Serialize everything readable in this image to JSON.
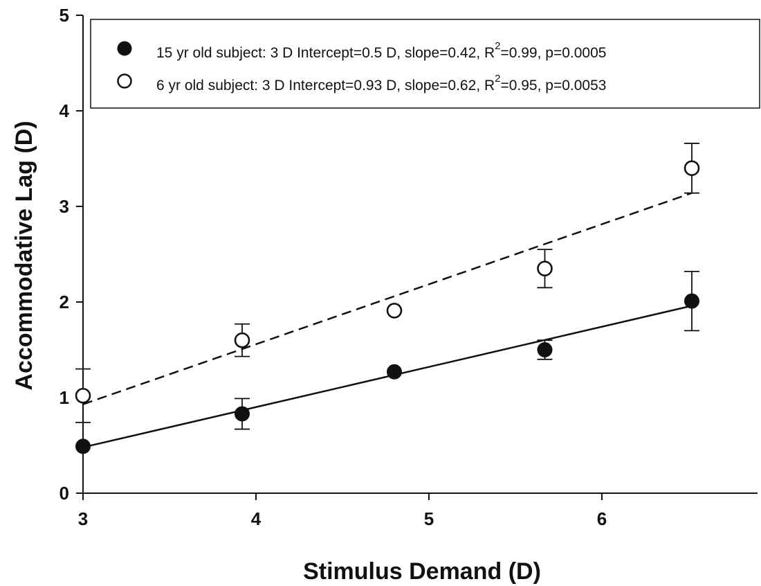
{
  "chart_data": {
    "type": "scatter",
    "xlabel": "Stimulus Demand (D)",
    "ylabel": "Accommodative Lag (D)",
    "xlim": [
      3,
      6.9
    ],
    "ylim": [
      0,
      5
    ],
    "xticks": [
      "3",
      "4",
      "5",
      "6"
    ],
    "yticks": [
      "0",
      "1",
      "2",
      "3",
      "4",
      "5"
    ],
    "grid": false,
    "legend_position": "top",
    "series": [
      {
        "name": "15 yr old subject: 3 D Intercept=0.5 D, slope=0.42, R2=0.99, p=0.0005",
        "legend_main": "15 yr old subject: 3 D Intercept=0.5 D, slope=0.42, R",
        "legend_sup": "2",
        "legend_tail": "=0.99, p=0.0005",
        "marker": "filled-circle",
        "line_style": "solid",
        "x": [
          3.0,
          3.92,
          4.8,
          5.67,
          6.52
        ],
        "y": [
          0.49,
          0.83,
          1.27,
          1.5,
          2.01
        ],
        "err_low": [
          0.0,
          0.16,
          0.0,
          0.1,
          0.31
        ],
        "err_high": [
          0.0,
          0.16,
          0.0,
          0.1,
          0.31
        ],
        "fit": {
          "x": [
            3.0,
            6.52
          ],
          "y": [
            0.48,
            1.96
          ]
        }
      },
      {
        "name": "6 yr old subject: 3 D Intercept=0.93 D, slope=0.62, R2=0.95, p=0.0053",
        "legend_main": "6 yr old subject: 3 D Intercept=0.93 D, slope=0.62, R",
        "legend_sup": "2",
        "legend_tail": "=0.95, p=0.0053",
        "marker": "open-circle",
        "line_style": "dashed",
        "x": [
          3.0,
          3.92,
          4.8,
          5.67,
          6.52
        ],
        "y": [
          1.02,
          1.6,
          1.91,
          2.35,
          3.4
        ],
        "err_low": [
          0.28,
          0.17,
          0.0,
          0.2,
          0.26
        ],
        "err_high": [
          0.28,
          0.17,
          0.0,
          0.2,
          0.26
        ],
        "fit": {
          "x": [
            3.0,
            6.52
          ],
          "y": [
            0.93,
            3.14
          ]
        }
      }
    ]
  }
}
